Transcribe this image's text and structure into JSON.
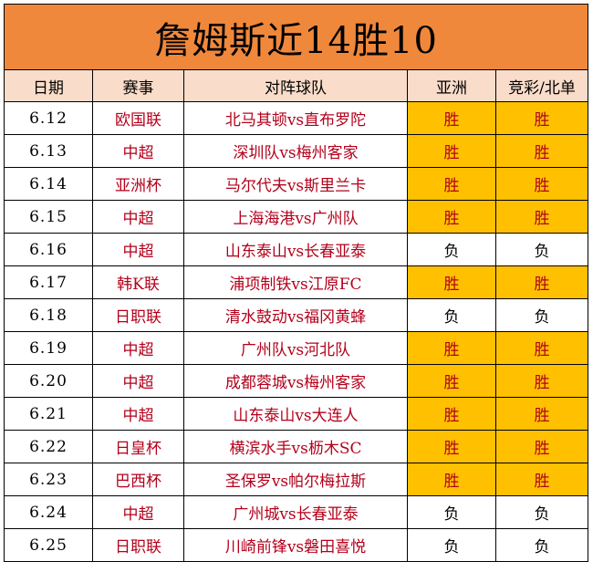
{
  "title": "詹姆斯近14胜10",
  "headers": {
    "date": "日期",
    "competition": "赛事",
    "match": "对阵球队",
    "asia": "亚洲",
    "lottery": "竞彩/北单"
  },
  "rows": [
    {
      "date": "6.12",
      "competition": "欧国联",
      "match": "北马其顿vs直布罗陀",
      "asia": "胜",
      "lottery": "胜"
    },
    {
      "date": "6.13",
      "competition": "中超",
      "match": "深圳队vs梅州客家",
      "asia": "胜",
      "lottery": "胜"
    },
    {
      "date": "6.14",
      "competition": "亚洲杯",
      "match": "马尔代夫vs斯里兰卡",
      "asia": "胜",
      "lottery": "胜"
    },
    {
      "date": "6.15",
      "competition": "中超",
      "match": "上海海港vs广州队",
      "asia": "胜",
      "lottery": "胜"
    },
    {
      "date": "6.16",
      "competition": "中超",
      "match": "山东泰山vs长春亚泰",
      "asia": "负",
      "lottery": "负"
    },
    {
      "date": "6.17",
      "competition": "韩K联",
      "match": "浦项制铁vs江原FC",
      "asia": "胜",
      "lottery": "胜"
    },
    {
      "date": "6.18",
      "competition": "日职联",
      "match": "清水鼓动vs福冈黄蜂",
      "asia": "负",
      "lottery": "负"
    },
    {
      "date": "6.19",
      "competition": "中超",
      "match": "广州队vs河北队",
      "asia": "胜",
      "lottery": "胜"
    },
    {
      "date": "6.20",
      "competition": "中超",
      "match": "成都蓉城vs梅州客家",
      "asia": "胜",
      "lottery": "胜"
    },
    {
      "date": "6.21",
      "competition": "中超",
      "match": "山东泰山vs大连人",
      "asia": "胜",
      "lottery": "胜"
    },
    {
      "date": "6.22",
      "competition": "日皇杯",
      "match": "横滨水手vs枥木SC",
      "asia": "胜",
      "lottery": "胜"
    },
    {
      "date": "6.23",
      "competition": "巴西杯",
      "match": "圣保罗vs帕尔梅拉斯",
      "asia": "胜",
      "lottery": "胜"
    },
    {
      "date": "6.24",
      "competition": "中超",
      "match": "广州城vs长春亚泰",
      "asia": "负",
      "lottery": "负"
    },
    {
      "date": "6.25",
      "competition": "日职联",
      "match": "川崎前锋vs磐田喜悦",
      "asia": "负",
      "lottery": "负"
    }
  ],
  "colors": {
    "title_bg": "#f0883c",
    "header_bg": "#f9dcc9",
    "win_bg": "#ffc000",
    "text_red": "#b3001b"
  }
}
